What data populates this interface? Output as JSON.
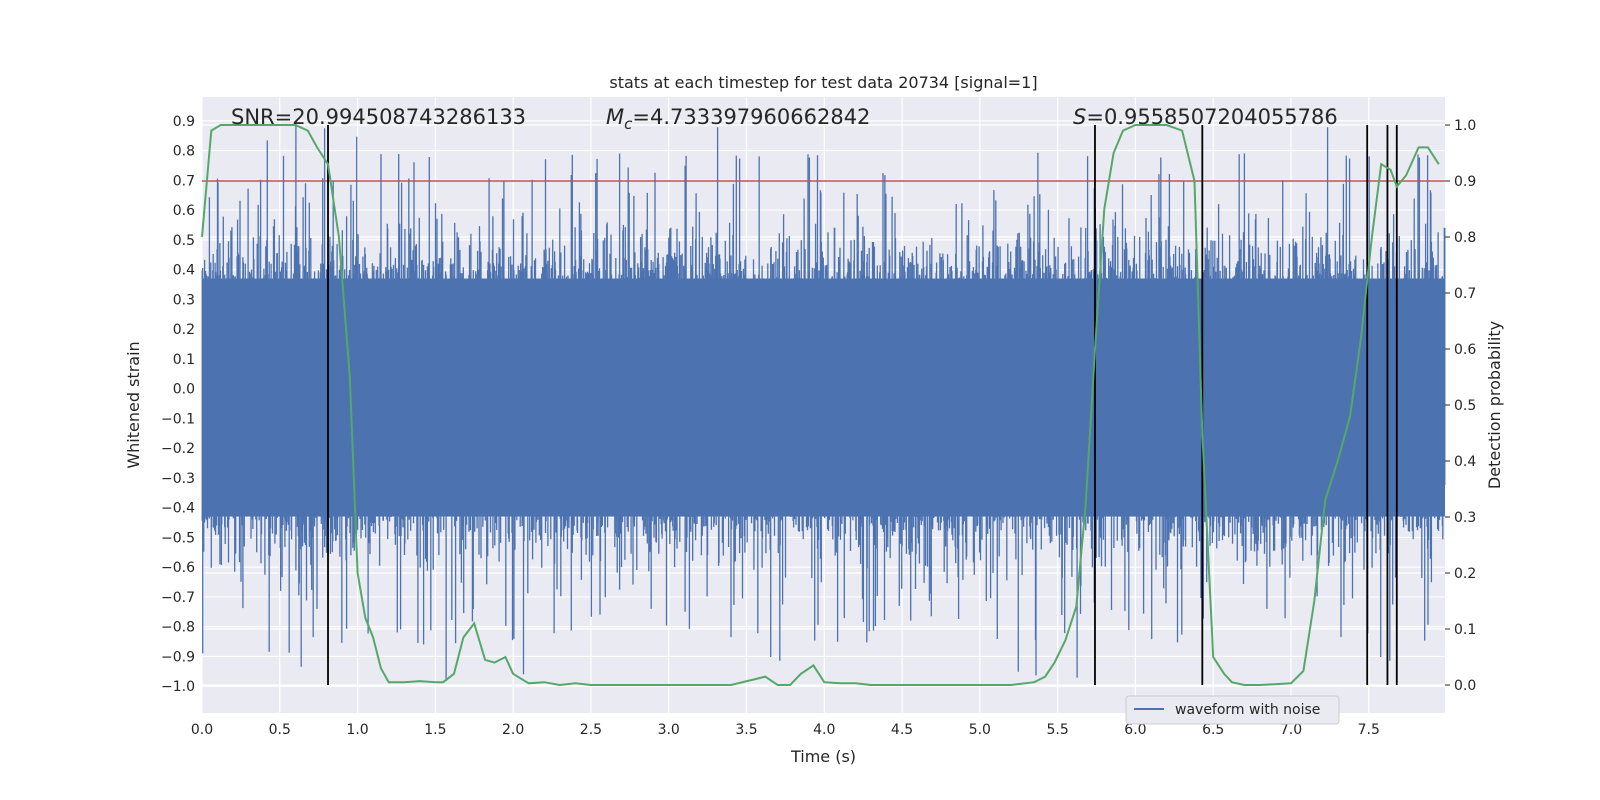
{
  "chart_data": {
    "type": "line",
    "title": "stats at each timestep for test data 20734 [signal=1]",
    "xlabel": "Time (s)",
    "ylabel_left": "Whitened strain",
    "ylabel_right": "Detection probability",
    "xlim": [
      0.0,
      7.99
    ],
    "ylim_left": [
      -1.09,
      0.98
    ],
    "ylim_right": [
      -0.05,
      1.05
    ],
    "x_ticks": [
      "0.0",
      "0.5",
      "1.0",
      "1.5",
      "2.0",
      "2.5",
      "3.0",
      "3.5",
      "4.0",
      "4.5",
      "5.0",
      "5.5",
      "6.0",
      "6.5",
      "7.0",
      "7.5"
    ],
    "y_ticks_left": [
      "0.9",
      "0.8",
      "0.7",
      "0.6",
      "0.5",
      "0.4",
      "0.3",
      "0.2",
      "0.1",
      "0.0",
      "−0.1",
      "−0.2",
      "−0.3",
      "−0.4",
      "−0.5",
      "−0.6",
      "−0.7",
      "−0.8",
      "−0.9",
      "−1.0"
    ],
    "y_ticks_right": [
      "1.0",
      "0.9",
      "0.8",
      "0.7",
      "0.6",
      "0.5",
      "0.4",
      "0.3",
      "0.2",
      "0.1",
      "0.0"
    ],
    "annotations": {
      "snr": "SNR=20.994508743286133",
      "mc_symbol": "M",
      "mc_sub": "c",
      "mc_value": "=4.733397960662842",
      "s_symbol": "S",
      "s_value": "=0.9558507204055786"
    },
    "threshold": {
      "value": 0.9,
      "axis": "right",
      "color": "#c44e52"
    },
    "vertical_lines": [
      0.81,
      5.74,
      6.43,
      7.49,
      7.62,
      7.68
    ],
    "series": [
      {
        "name": "waveform with noise",
        "axis": "left",
        "color": "#4c72b0",
        "style": "dense noise trace",
        "band_low": -0.43,
        "band_high": 0.37,
        "peak_high": 0.9,
        "peak_low": -1.0
      },
      {
        "name": "detection probability",
        "axis": "right",
        "color": "#55a868",
        "x": [
          0.0,
          0.06,
          0.12,
          0.2,
          0.3,
          0.4,
          0.5,
          0.6,
          0.68,
          0.74,
          0.81,
          0.88,
          0.95,
          1.0,
          1.05,
          1.1,
          1.15,
          1.2,
          1.3,
          1.4,
          1.5,
          1.55,
          1.62,
          1.68,
          1.75,
          1.82,
          1.88,
          1.95,
          2.0,
          2.1,
          2.2,
          2.3,
          2.4,
          2.5,
          2.6,
          2.8,
          3.0,
          3.2,
          3.4,
          3.55,
          3.62,
          3.7,
          3.78,
          3.85,
          3.93,
          4.0,
          4.1,
          4.2,
          4.3,
          4.5,
          4.8,
          5.0,
          5.2,
          5.35,
          5.42,
          5.48,
          5.55,
          5.62,
          5.68,
          5.74,
          5.8,
          5.86,
          5.92,
          6.0,
          6.1,
          6.2,
          6.3,
          6.38,
          6.43,
          6.5,
          6.57,
          6.62,
          6.7,
          6.8,
          7.0,
          7.08,
          7.15,
          7.22,
          7.3,
          7.38,
          7.45,
          7.52,
          7.58,
          7.64,
          7.68,
          7.74,
          7.82,
          7.88,
          7.95
        ],
        "y": [
          0.8,
          0.99,
          1.0,
          1.0,
          1.0,
          1.0,
          1.0,
          1.0,
          0.99,
          0.96,
          0.93,
          0.8,
          0.55,
          0.2,
          0.12,
          0.085,
          0.03,
          0.005,
          0.005,
          0.007,
          0.005,
          0.005,
          0.02,
          0.085,
          0.11,
          0.045,
          0.04,
          0.05,
          0.02,
          0.003,
          0.005,
          0.0,
          0.003,
          0.0,
          0.0,
          0.0,
          0.0,
          0.0,
          0.0,
          0.01,
          0.015,
          0.0,
          0.0,
          0.02,
          0.035,
          0.005,
          0.003,
          0.003,
          0.0,
          0.0,
          0.0,
          0.0,
          0.0,
          0.005,
          0.015,
          0.04,
          0.08,
          0.14,
          0.32,
          0.6,
          0.85,
          0.95,
          0.99,
          1.0,
          1.0,
          1.0,
          0.99,
          0.9,
          0.45,
          0.05,
          0.02,
          0.005,
          0.0,
          0.0,
          0.003,
          0.025,
          0.15,
          0.33,
          0.4,
          0.48,
          0.62,
          0.8,
          0.93,
          0.92,
          0.89,
          0.91,
          0.96,
          0.96,
          0.93
        ]
      }
    ],
    "legend": {
      "label": "waveform with noise",
      "placement": "lower-right"
    },
    "grid": true
  }
}
